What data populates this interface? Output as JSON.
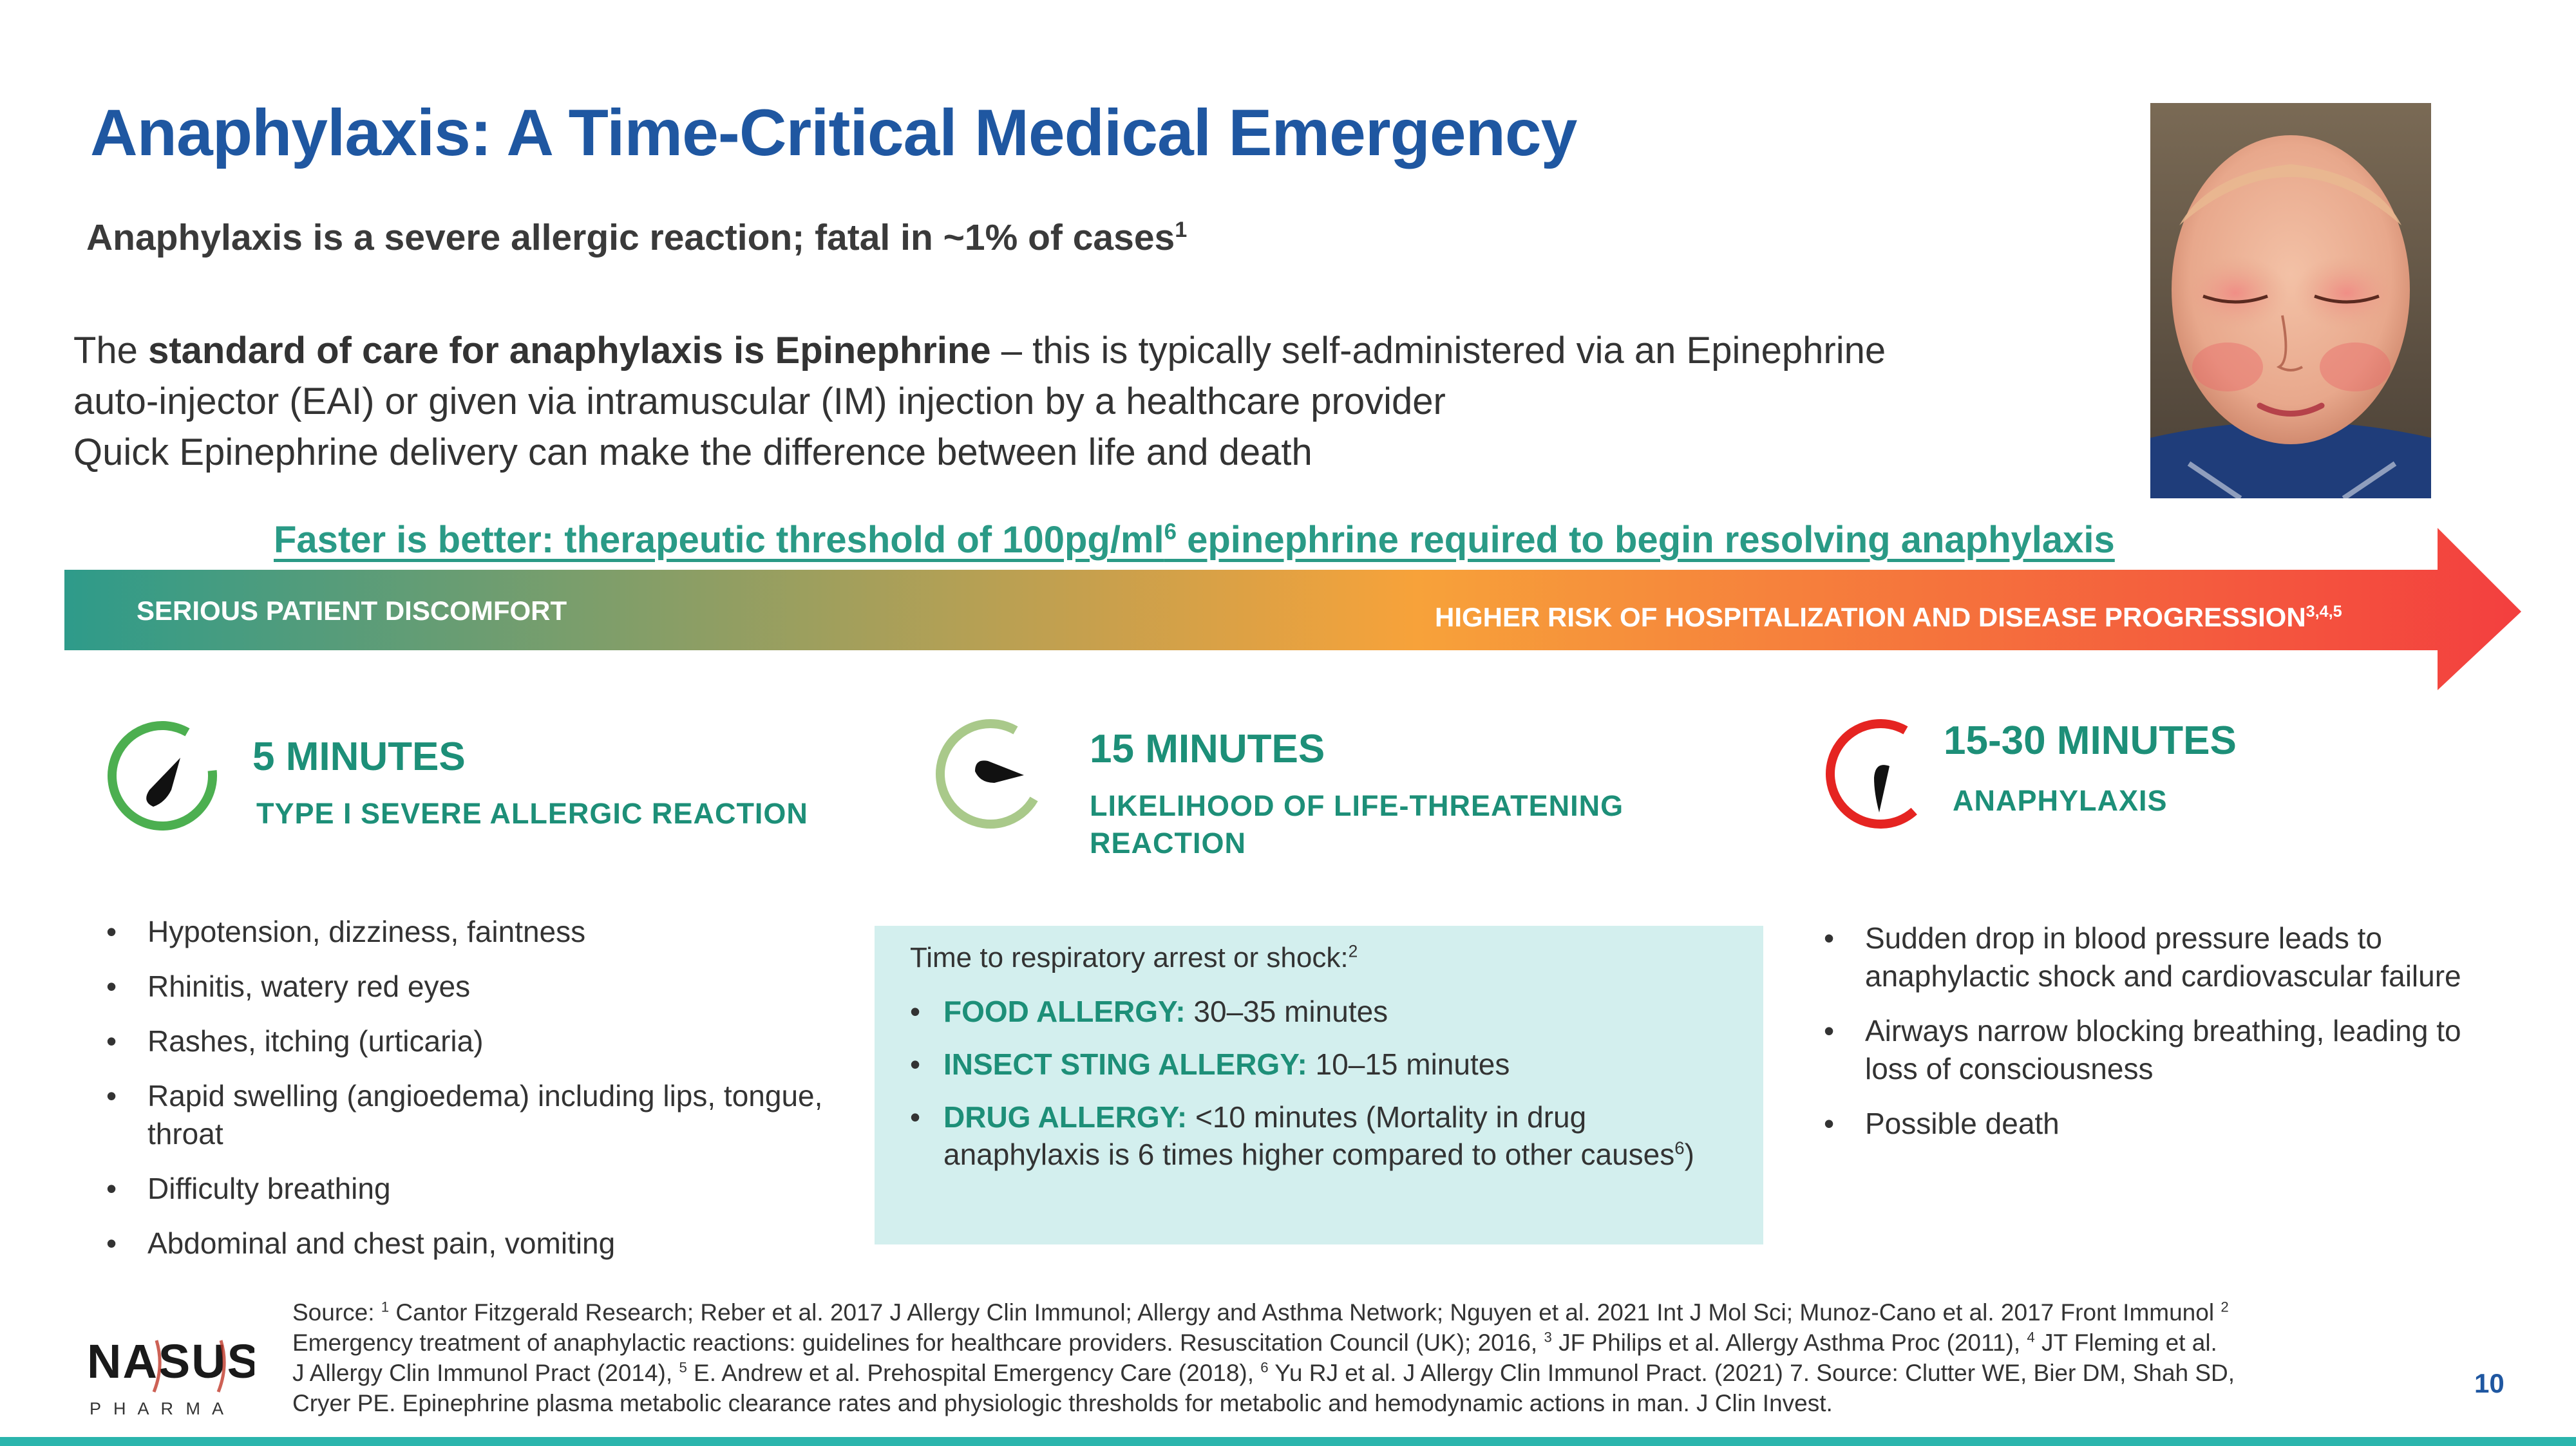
{
  "slide": {
    "title": "Anaphylaxis: A Time-Critical Medical Emergency",
    "subtitle": "Anaphylaxis is a severe allergic reaction; fatal in ~1% of cases",
    "subtitle_ref": "1",
    "page_number": "10"
  },
  "intro": {
    "l1_pre": "The ",
    "l1_bold": "standard of care for anaphylaxis is Epinephrine",
    "l1_post": " – this is typically self-administered via an Epinephrine",
    "l2": "auto-injector (EAI) or given via intramuscular (IM) injection by a healthcare provider",
    "l3": "Quick Epinephrine delivery can make the difference between life and death"
  },
  "threshold": {
    "pre": "Faster is better: therapeutic threshold of 100pg/ml",
    "ref": "6",
    "post": " epinephrine required to begin resolving anaphylaxis"
  },
  "arrow": {
    "left_label": "SERIOUS PATIENT DISCOMFORT",
    "right_label": "HIGHER RISK OF HOSPITALIZATION AND DISEASE PROGRESSION",
    "right_ref": "3,4,5",
    "color_start": "#2e9b8a",
    "color_mid": "#f7a23a",
    "color_end": "#f33f3f"
  },
  "stages": [
    {
      "time": "5 MINUTES",
      "label": "TYPE I SEVERE ALLERGIC REACTION",
      "timer_color": "#4caf50",
      "timer_fraction": 0.85,
      "bullets": [
        "Hypotension, dizziness, faintness",
        "Rhinitis, watery red eyes",
        "Rashes, itching (urticaria)",
        "Rapid swelling (angioedema) including lips, tongue, throat",
        "Difficulty breathing",
        "Abdominal and chest pain, vomiting"
      ]
    },
    {
      "time": "15 MINUTES",
      "label": "LIKELIHOOD OF LIFE-THREATENING REACTION",
      "timer_color": "#a9c98a",
      "timer_fraction": 0.75,
      "box_intro": "Time to respiratory arrest or shock:",
      "box_intro_ref": "2",
      "box_items": [
        {
          "label": "FOOD ALLERGY:",
          "text": " 30–35 minutes"
        },
        {
          "label": "INSECT STING ALLERGY:",
          "text": " 10–15 minutes"
        },
        {
          "label": "DRUG ALLERGY:",
          "text": " <10 minutes (Mortality in drug anaphylaxis is 6 times higher compared to other causes",
          "ref": "6",
          "tail": ")"
        }
      ]
    },
    {
      "time": "15-30 MINUTES",
      "label": "ANAPHYLAXIS",
      "timer_color": "#e52421",
      "timer_fraction": 0.7,
      "bullets": [
        "Sudden drop in blood pressure leads to anaphylactic shock and cardiovascular failure",
        "Airways narrow blocking  breathing, leading to loss of consciousness",
        "Possible death"
      ]
    }
  ],
  "source": {
    "l1_a": "Source: ",
    "l1_r1": "1",
    "l1_b": " Cantor Fitzgerald Research; Reber et al. 2017 J Allergy Clin Immunol; Allergy and Asthma Network; Nguyen et al. 2021 Int J Mol Sci; Munoz-Cano et al. 2017 Front Immunol ",
    "l1_r2": "2",
    "l2_a": "Emergency treatment of anaphylactic reactions: guidelines for healthcare   providers. Resuscitation Council (UK); 2016, ",
    "l2_r3": "3",
    "l2_b": " JF Philips et al. Allergy Asthma Proc (2011), ",
    "l2_r4": "4",
    "l2_c": " JT  Fleming et al.",
    "l3_a": "J Allergy Clin Immunol Pract (2014), ",
    "l3_r5": "5",
    "l3_b": " E. Andrew et al. Prehospital Emergency Care (2018), ",
    "l3_r6": "6",
    "l3_c": " Yu RJ et al. J Allergy Clin Immunol Pract. (2021)  7. Source: Clutter WE, Bier DM, Shah SD,",
    "l4": "Cryer PE. Epinephrine plasma metabolic clearance rates and physiologic thresholds for metabolic and   hemodynamic actions in man. J Clin Invest."
  },
  "logo": {
    "top": "NASUS",
    "bottom": "P H A R M A"
  }
}
